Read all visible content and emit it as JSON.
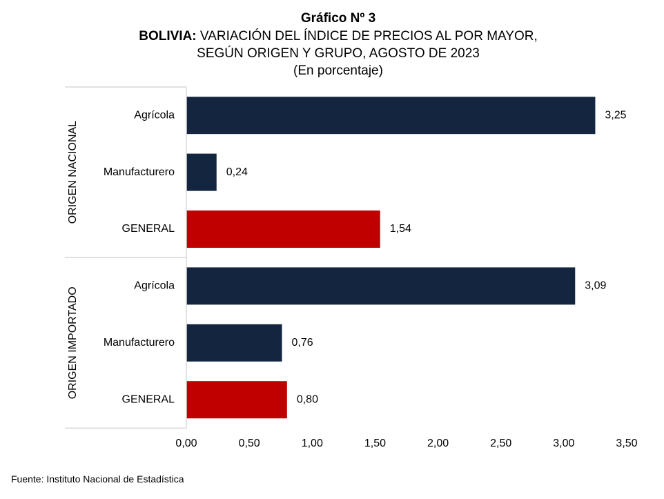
{
  "title": {
    "line1": "Gráfico Nº 3",
    "line2_bold": "BOLIVIA:",
    "line2_rest": " VARIACIÓN DEL ÍNDICE DE PRECIOS AL POR MAYOR,",
    "line3": "SEGÚN ORIGEN Y GRUPO, AGOSTO DE 2023",
    "line4": "(En porcentaje)"
  },
  "source": "Fuente: Instituto Nacional de Estadística",
  "colors": {
    "group_bar": "#14263f",
    "general_bar": "#c00000",
    "axis": "#d9d9d9"
  },
  "chart_data": {
    "type": "bar",
    "orientation": "horizontal",
    "groups": [
      {
        "label": "ORIGEN NACIONAL",
        "categories": [
          "Agrícola",
          "Manufacturero",
          "GENERAL"
        ],
        "values": [
          3.25,
          0.24,
          1.54
        ],
        "value_labels": [
          "3,25",
          "0,24",
          "1,54"
        ]
      },
      {
        "label": "ORIGEN IMPORTADO",
        "categories": [
          "Agrícola",
          "Manufacturero",
          "GENERAL"
        ],
        "values": [
          3.09,
          0.76,
          0.8
        ],
        "value_labels": [
          "3,09",
          "0,76",
          "0,80"
        ]
      }
    ],
    "xlim": [
      0,
      3.5
    ],
    "xticks": [
      0,
      0.5,
      1.0,
      1.5,
      2.0,
      2.5,
      3.0,
      3.5
    ],
    "xtick_labels": [
      "0,00",
      "0,50",
      "1,00",
      "1,50",
      "2,00",
      "2,50",
      "3,00",
      "3,50"
    ],
    "grid": false
  }
}
